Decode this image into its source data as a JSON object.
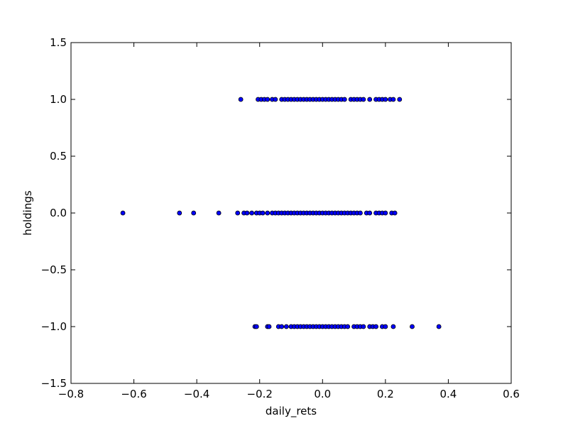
{
  "chart_data": {
    "type": "scatter",
    "title": "",
    "xlabel": "daily_rets",
    "ylabel": "holdings",
    "xlim": [
      -0.8,
      0.6
    ],
    "ylim": [
      -1.5,
      1.5
    ],
    "grid": false,
    "marker_color": "#0000ff",
    "marker_edge_color": "#000000",
    "x_ticks": [
      -0.8,
      -0.6,
      -0.4,
      -0.2,
      0.0,
      0.2,
      0.4,
      0.6
    ],
    "x_tick_labels": [
      "−0.8",
      "−0.6",
      "−0.4",
      "−0.2",
      "0.0",
      "0.2",
      "0.4",
      "0.6"
    ],
    "y_ticks": [
      -1.5,
      -1.0,
      -0.5,
      0.0,
      0.5,
      1.0,
      1.5
    ],
    "y_tick_labels": [
      "−1.5",
      "−1.0",
      "−0.5",
      "0.0",
      "0.5",
      "1.0",
      "1.5"
    ],
    "series": [
      {
        "values": [
          {
            "x": -0.26,
            "y": 1.0
          },
          {
            "x": -0.205,
            "y": 1.0
          },
          {
            "x": -0.195,
            "y": 1.0
          },
          {
            "x": -0.185,
            "y": 1.0
          },
          {
            "x": -0.175,
            "y": 1.0
          },
          {
            "x": -0.16,
            "y": 1.0
          },
          {
            "x": -0.15,
            "y": 1.0
          },
          {
            "x": -0.13,
            "y": 1.0
          },
          {
            "x": -0.12,
            "y": 1.0
          },
          {
            "x": -0.11,
            "y": 1.0
          },
          {
            "x": -0.1,
            "y": 1.0
          },
          {
            "x": -0.09,
            "y": 1.0
          },
          {
            "x": -0.08,
            "y": 1.0
          },
          {
            "x": -0.07,
            "y": 1.0
          },
          {
            "x": -0.06,
            "y": 1.0
          },
          {
            "x": -0.05,
            "y": 1.0
          },
          {
            "x": -0.04,
            "y": 1.0
          },
          {
            "x": -0.03,
            "y": 1.0
          },
          {
            "x": -0.02,
            "y": 1.0
          },
          {
            "x": -0.01,
            "y": 1.0
          },
          {
            "x": 0.0,
            "y": 1.0
          },
          {
            "x": 0.01,
            "y": 1.0
          },
          {
            "x": 0.02,
            "y": 1.0
          },
          {
            "x": 0.03,
            "y": 1.0
          },
          {
            "x": 0.04,
            "y": 1.0
          },
          {
            "x": 0.05,
            "y": 1.0
          },
          {
            "x": 0.06,
            "y": 1.0
          },
          {
            "x": 0.07,
            "y": 1.0
          },
          {
            "x": 0.09,
            "y": 1.0
          },
          {
            "x": 0.1,
            "y": 1.0
          },
          {
            "x": 0.11,
            "y": 1.0
          },
          {
            "x": 0.12,
            "y": 1.0
          },
          {
            "x": 0.13,
            "y": 1.0
          },
          {
            "x": 0.15,
            "y": 1.0
          },
          {
            "x": 0.17,
            "y": 1.0
          },
          {
            "x": 0.18,
            "y": 1.0
          },
          {
            "x": 0.19,
            "y": 1.0
          },
          {
            "x": 0.2,
            "y": 1.0
          },
          {
            "x": 0.215,
            "y": 1.0
          },
          {
            "x": 0.225,
            "y": 1.0
          },
          {
            "x": 0.245,
            "y": 1.0
          },
          {
            "x": -0.635,
            "y": 0.0
          },
          {
            "x": -0.455,
            "y": 0.0
          },
          {
            "x": -0.41,
            "y": 0.0
          },
          {
            "x": -0.33,
            "y": 0.0
          },
          {
            "x": -0.27,
            "y": 0.0
          },
          {
            "x": -0.25,
            "y": 0.0
          },
          {
            "x": -0.24,
            "y": 0.0
          },
          {
            "x": -0.225,
            "y": 0.0
          },
          {
            "x": -0.21,
            "y": 0.0
          },
          {
            "x": -0.2,
            "y": 0.0
          },
          {
            "x": -0.19,
            "y": 0.0
          },
          {
            "x": -0.175,
            "y": 0.0
          },
          {
            "x": -0.16,
            "y": 0.0
          },
          {
            "x": -0.15,
            "y": 0.0
          },
          {
            "x": -0.14,
            "y": 0.0
          },
          {
            "x": -0.13,
            "y": 0.0
          },
          {
            "x": -0.12,
            "y": 0.0
          },
          {
            "x": -0.11,
            "y": 0.0
          },
          {
            "x": -0.1,
            "y": 0.0
          },
          {
            "x": -0.09,
            "y": 0.0
          },
          {
            "x": -0.08,
            "y": 0.0
          },
          {
            "x": -0.07,
            "y": 0.0
          },
          {
            "x": -0.06,
            "y": 0.0
          },
          {
            "x": -0.05,
            "y": 0.0
          },
          {
            "x": -0.04,
            "y": 0.0
          },
          {
            "x": -0.03,
            "y": 0.0
          },
          {
            "x": -0.02,
            "y": 0.0
          },
          {
            "x": -0.01,
            "y": 0.0
          },
          {
            "x": 0.0,
            "y": 0.0
          },
          {
            "x": 0.01,
            "y": 0.0
          },
          {
            "x": 0.02,
            "y": 0.0
          },
          {
            "x": 0.03,
            "y": 0.0
          },
          {
            "x": 0.04,
            "y": 0.0
          },
          {
            "x": 0.05,
            "y": 0.0
          },
          {
            "x": 0.06,
            "y": 0.0
          },
          {
            "x": 0.07,
            "y": 0.0
          },
          {
            "x": 0.08,
            "y": 0.0
          },
          {
            "x": 0.09,
            "y": 0.0
          },
          {
            "x": 0.1,
            "y": 0.0
          },
          {
            "x": 0.11,
            "y": 0.0
          },
          {
            "x": 0.12,
            "y": 0.0
          },
          {
            "x": 0.14,
            "y": 0.0
          },
          {
            "x": 0.15,
            "y": 0.0
          },
          {
            "x": 0.17,
            "y": 0.0
          },
          {
            "x": 0.18,
            "y": 0.0
          },
          {
            "x": 0.19,
            "y": 0.0
          },
          {
            "x": 0.2,
            "y": 0.0
          },
          {
            "x": 0.22,
            "y": 0.0
          },
          {
            "x": 0.23,
            "y": 0.0
          },
          {
            "x": -0.215,
            "y": -1.0
          },
          {
            "x": -0.21,
            "y": -1.0
          },
          {
            "x": -0.175,
            "y": -1.0
          },
          {
            "x": -0.17,
            "y": -1.0
          },
          {
            "x": -0.14,
            "y": -1.0
          },
          {
            "x": -0.13,
            "y": -1.0
          },
          {
            "x": -0.115,
            "y": -1.0
          },
          {
            "x": -0.1,
            "y": -1.0
          },
          {
            "x": -0.09,
            "y": -1.0
          },
          {
            "x": -0.08,
            "y": -1.0
          },
          {
            "x": -0.07,
            "y": -1.0
          },
          {
            "x": -0.06,
            "y": -1.0
          },
          {
            "x": -0.05,
            "y": -1.0
          },
          {
            "x": -0.04,
            "y": -1.0
          },
          {
            "x": -0.03,
            "y": -1.0
          },
          {
            "x": -0.02,
            "y": -1.0
          },
          {
            "x": -0.01,
            "y": -1.0
          },
          {
            "x": 0.0,
            "y": -1.0
          },
          {
            "x": 0.01,
            "y": -1.0
          },
          {
            "x": 0.02,
            "y": -1.0
          },
          {
            "x": 0.03,
            "y": -1.0
          },
          {
            "x": 0.04,
            "y": -1.0
          },
          {
            "x": 0.05,
            "y": -1.0
          },
          {
            "x": 0.06,
            "y": -1.0
          },
          {
            "x": 0.07,
            "y": -1.0
          },
          {
            "x": 0.08,
            "y": -1.0
          },
          {
            "x": 0.1,
            "y": -1.0
          },
          {
            "x": 0.11,
            "y": -1.0
          },
          {
            "x": 0.12,
            "y": -1.0
          },
          {
            "x": 0.13,
            "y": -1.0
          },
          {
            "x": 0.15,
            "y": -1.0
          },
          {
            "x": 0.16,
            "y": -1.0
          },
          {
            "x": 0.17,
            "y": -1.0
          },
          {
            "x": 0.19,
            "y": -1.0
          },
          {
            "x": 0.2,
            "y": -1.0
          },
          {
            "x": 0.225,
            "y": -1.0
          },
          {
            "x": 0.285,
            "y": -1.0
          },
          {
            "x": 0.37,
            "y": -1.0
          }
        ]
      }
    ]
  }
}
